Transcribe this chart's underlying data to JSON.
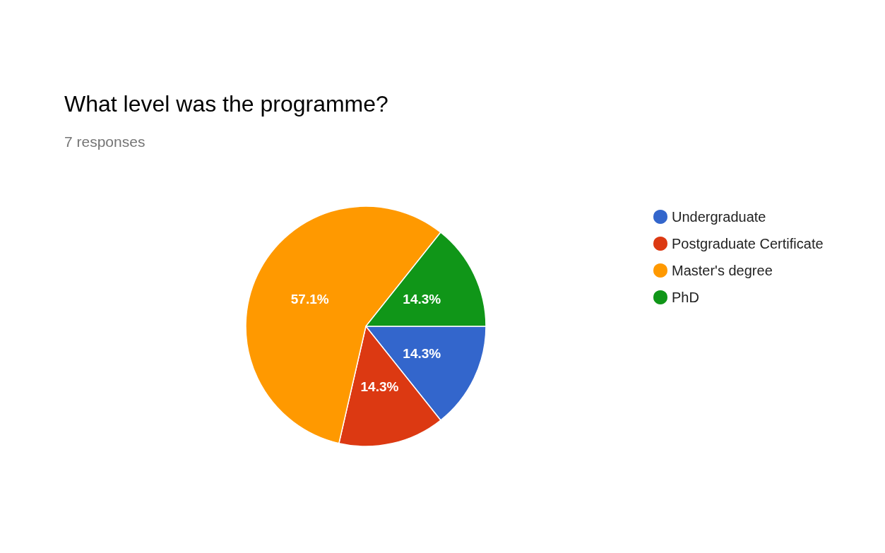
{
  "chart_data": {
    "type": "pie",
    "title": "What level was the programme?",
    "subtitle": "7 responses",
    "categories": [
      "Undergraduate",
      "Postgraduate Certificate",
      "Master's degree",
      "PhD"
    ],
    "values": [
      14.3,
      14.3,
      57.1,
      14.3
    ],
    "colors": [
      "#3366cc",
      "#dc3912",
      "#ff9900",
      "#109618"
    ],
    "value_labels": [
      "14.3%",
      "14.3%",
      "57.1%",
      "14.3%"
    ],
    "legend": "right"
  }
}
